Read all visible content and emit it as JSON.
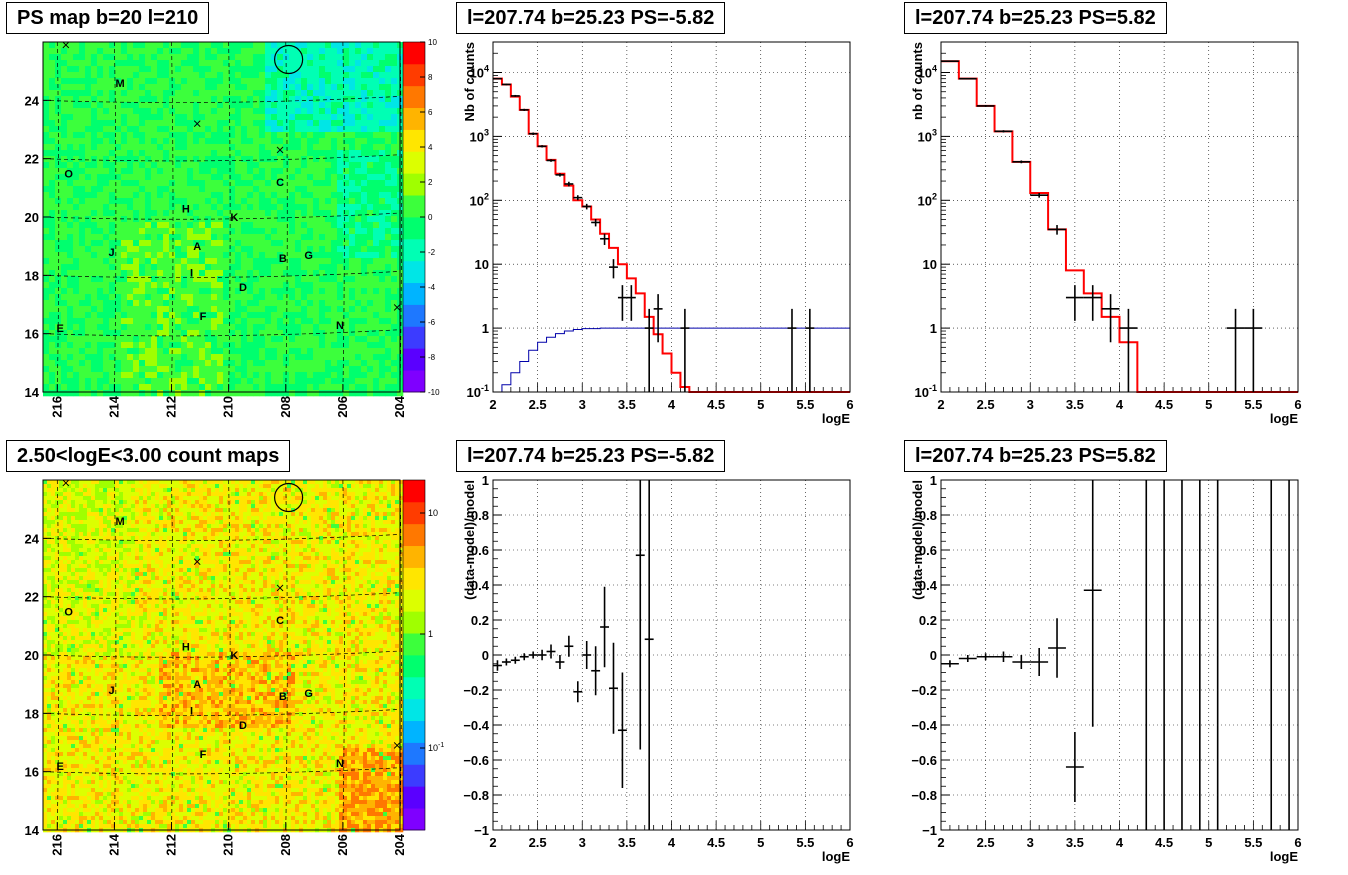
{
  "map_panels": [
    {
      "title": "PS map b=20 l=210",
      "x_ticks": [
        "216",
        "214",
        "212",
        "210",
        "208",
        "206",
        "204"
      ],
      "y_ticks": [
        "14",
        "16",
        "18",
        "20",
        "22",
        "24"
      ],
      "colorbar": {
        "scale": "linear",
        "min": -10,
        "max": 10,
        "ticks": [
          "-10",
          "-8",
          "-6",
          "-4",
          "-2",
          "0",
          "2",
          "4",
          "6",
          "8",
          "10"
        ]
      },
      "palette": [
        "#7f00ff",
        "#5a00ff",
        "#3c3cff",
        "#1e78ff",
        "#00b4ff",
        "#00e6e6",
        "#00ffb4",
        "#00ff6e",
        "#3cff3c",
        "#a0ff00",
        "#dcff00",
        "#ffe600",
        "#ffb400",
        "#ff7800",
        "#ff3c00",
        "#ff0000"
      ],
      "background_color": "#32e85c"
    },
    {
      "title": "2.50<logE<3.00 count maps",
      "x_ticks": [
        "216",
        "214",
        "212",
        "210",
        "208",
        "206",
        "204"
      ],
      "y_ticks": [
        "14",
        "16",
        "18",
        "20",
        "22",
        "24"
      ],
      "colorbar": {
        "scale": "log",
        "tick_labels": [
          "10",
          "1",
          "10-1"
        ]
      },
      "palette": [
        "#7f00ff",
        "#5a00ff",
        "#3c3cff",
        "#1e78ff",
        "#00b4ff",
        "#00e6e6",
        "#00ffb4",
        "#00ff6e",
        "#3cff3c",
        "#a0ff00",
        "#dcff00",
        "#ffe600",
        "#ffb400",
        "#ff7800",
        "#ff3c00",
        "#ff0000"
      ],
      "background_color": "#e8d83a"
    }
  ],
  "map_labels": [
    {
      "name": "M",
      "l": 213.8,
      "b": 24.6
    },
    {
      "name": "O",
      "l": 215.6,
      "b": 21.5
    },
    {
      "name": "C",
      "l": 208.2,
      "b": 21.2
    },
    {
      "name": "H",
      "l": 211.5,
      "b": 20.3
    },
    {
      "name": "K",
      "l": 209.8,
      "b": 20.0
    },
    {
      "name": "J",
      "l": 214.1,
      "b": 18.8
    },
    {
      "name": "A",
      "l": 211.1,
      "b": 19.0
    },
    {
      "name": "B",
      "l": 208.1,
      "b": 18.6
    },
    {
      "name": "G",
      "l": 207.2,
      "b": 18.7
    },
    {
      "name": "I",
      "l": 211.3,
      "b": 18.1
    },
    {
      "name": "D",
      "l": 209.5,
      "b": 17.6
    },
    {
      "name": "F",
      "l": 210.9,
      "b": 16.6
    },
    {
      "name": "N",
      "l": 206.1,
      "b": 16.3
    },
    {
      "name": "E",
      "l": 215.9,
      "b": 16.2
    }
  ],
  "map_crosses": [
    {
      "l": 215.7,
      "b": 25.9
    },
    {
      "l": 211.1,
      "b": 23.2
    },
    {
      "l": 208.2,
      "b": 22.3
    },
    {
      "l": 204.1,
      "b": 16.9
    }
  ],
  "map_circle": {
    "l": 207.9,
    "b": 25.4
  },
  "chart_data": [
    {
      "type": "line",
      "title": "l=207.74 b=25.23 PS=-5.82",
      "xlabel": "logE",
      "ylabel": "Nb of counts",
      "xlim": [
        2,
        6
      ],
      "ylim": [
        0.1,
        30000
      ],
      "yscale": "log",
      "x_ticks": [
        "2",
        "2.5",
        "3",
        "3.5",
        "4",
        "4.5",
        "5",
        "5.5",
        "6"
      ],
      "y_ticks": [
        {
          "v": 0.1,
          "t": "10-1"
        },
        {
          "v": 1,
          "t": "1"
        },
        {
          "v": 10,
          "t": "10"
        },
        {
          "v": 100,
          "t": "10^2"
        },
        {
          "v": 1000,
          "t": "10^3"
        },
        {
          "v": 10000,
          "t": "10^4"
        }
      ],
      "grid": true,
      "model_step": {
        "color": "#ff0000",
        "edges": [
          2,
          2.1,
          2.2,
          2.3,
          2.4,
          2.5,
          2.6,
          2.7,
          2.8,
          2.9,
          3.0,
          3.1,
          3.2,
          3.3,
          3.4,
          3.5,
          3.6,
          3.7,
          3.8,
          3.9,
          4.0,
          4.1,
          4.2,
          6.0
        ],
        "values": [
          8000,
          6500,
          4200,
          2600,
          1100,
          700,
          430,
          260,
          170,
          100,
          80,
          50,
          30,
          18,
          10,
          6,
          3.5,
          1.5,
          0.8,
          0.4,
          0.2,
          0.12,
          0.1
        ]
      },
      "aux_step": {
        "color": "#0000aa",
        "edges": [
          2.0,
          2.1,
          2.2,
          2.3,
          2.4,
          2.5,
          2.6,
          2.7,
          2.8,
          2.9,
          3.0,
          3.2,
          3.4,
          3.6,
          6.0
        ],
        "values": [
          0.08,
          0.13,
          0.2,
          0.3,
          0.45,
          0.6,
          0.72,
          0.82,
          0.9,
          0.95,
          0.98,
          1.0,
          1.0,
          1.0
        ]
      },
      "points": [
        {
          "x": 2.05,
          "y": 8000,
          "lo": 7800,
          "hi": 8200,
          "xe": 0.05
        },
        {
          "x": 2.15,
          "y": 6500,
          "lo": 6300,
          "hi": 6700,
          "xe": 0.05
        },
        {
          "x": 2.25,
          "y": 4300,
          "lo": 4150,
          "hi": 4450,
          "xe": 0.05
        },
        {
          "x": 2.35,
          "y": 2600,
          "lo": 2500,
          "hi": 2700,
          "xe": 0.05
        },
        {
          "x": 2.45,
          "y": 1100,
          "lo": 1050,
          "hi": 1150,
          "xe": 0.05
        },
        {
          "x": 2.55,
          "y": 700,
          "lo": 670,
          "hi": 730,
          "xe": 0.05
        },
        {
          "x": 2.65,
          "y": 420,
          "lo": 400,
          "hi": 440,
          "xe": 0.05
        },
        {
          "x": 2.75,
          "y": 250,
          "lo": 235,
          "hi": 265,
          "xe": 0.05
        },
        {
          "x": 2.85,
          "y": 180,
          "lo": 165,
          "hi": 195,
          "xe": 0.05
        },
        {
          "x": 2.95,
          "y": 110,
          "lo": 100,
          "hi": 120,
          "xe": 0.05
        },
        {
          "x": 3.05,
          "y": 80,
          "lo": 72,
          "hi": 88,
          "xe": 0.05
        },
        {
          "x": 3.15,
          "y": 45,
          "lo": 39,
          "hi": 51,
          "xe": 0.05
        },
        {
          "x": 3.25,
          "y": 25,
          "lo": 20,
          "hi": 30,
          "xe": 0.05
        },
        {
          "x": 3.35,
          "y": 9,
          "lo": 6,
          "hi": 12,
          "xe": 0.05
        },
        {
          "x": 3.45,
          "y": 3,
          "lo": 1.3,
          "hi": 4.7,
          "xe": 0.05
        },
        {
          "x": 3.55,
          "y": 3,
          "lo": 1.3,
          "hi": 4.7,
          "xe": 0.05
        },
        {
          "x": 3.75,
          "y": 1,
          "lo": 0.1,
          "hi": 2,
          "xe": 0.05
        },
        {
          "x": 3.85,
          "y": 2,
          "lo": 0.6,
          "hi": 3.4,
          "xe": 0.05
        },
        {
          "x": 4.15,
          "y": 1,
          "lo": 0.1,
          "hi": 2,
          "xe": 0.05
        },
        {
          "x": 5.35,
          "y": 1,
          "lo": 0.1,
          "hi": 2,
          "xe": 0.05
        },
        {
          "x": 5.55,
          "y": 1,
          "lo": 0.1,
          "hi": 2,
          "xe": 0.05
        }
      ]
    },
    {
      "type": "line",
      "title": "l=207.74 b=25.23 PS=5.82",
      "xlabel": "logE",
      "ylabel": "nb of counts",
      "xlim": [
        2,
        6
      ],
      "ylim": [
        0.1,
        30000
      ],
      "yscale": "log",
      "x_ticks": [
        "2",
        "2.5",
        "3",
        "3.5",
        "4",
        "4.5",
        "5",
        "5.5",
        "6"
      ],
      "y_ticks": [
        {
          "v": 0.1,
          "t": "10-1"
        },
        {
          "v": 1,
          "t": "1"
        },
        {
          "v": 10,
          "t": "10"
        },
        {
          "v": 100,
          "t": "10^2"
        },
        {
          "v": 1000,
          "t": "10^3"
        },
        {
          "v": 10000,
          "t": "10^4"
        }
      ],
      "grid": true,
      "model_step": {
        "color": "#ff0000",
        "edges": [
          2,
          2.2,
          2.4,
          2.6,
          2.8,
          3.0,
          3.2,
          3.4,
          3.6,
          3.8,
          4.0,
          4.2,
          6.0
        ],
        "values": [
          15000,
          8000,
          3000,
          1200,
          400,
          130,
          35,
          8,
          3.5,
          1.5,
          0.6,
          0.1
        ]
      },
      "points": [
        {
          "x": 2.1,
          "y": 15000,
          "lo": 14600,
          "hi": 15400,
          "xe": 0.1
        },
        {
          "x": 2.3,
          "y": 8000,
          "lo": 7800,
          "hi": 8200,
          "xe": 0.1
        },
        {
          "x": 2.5,
          "y": 3000,
          "lo": 2900,
          "hi": 3100,
          "xe": 0.1
        },
        {
          "x": 2.7,
          "y": 1200,
          "lo": 1150,
          "hi": 1250,
          "xe": 0.1
        },
        {
          "x": 2.9,
          "y": 400,
          "lo": 380,
          "hi": 420,
          "xe": 0.1
        },
        {
          "x": 3.1,
          "y": 120,
          "lo": 110,
          "hi": 130,
          "xe": 0.1
        },
        {
          "x": 3.3,
          "y": 35,
          "lo": 29,
          "hi": 41,
          "xe": 0.1
        },
        {
          "x": 3.5,
          "y": 3,
          "lo": 1.3,
          "hi": 4.7,
          "xe": 0.1
        },
        {
          "x": 3.7,
          "y": 3,
          "lo": 1.3,
          "hi": 4.7,
          "xe": 0.1
        },
        {
          "x": 3.9,
          "y": 2,
          "lo": 0.6,
          "hi": 3.4,
          "xe": 0.1
        },
        {
          "x": 4.1,
          "y": 1,
          "lo": 0.1,
          "hi": 2,
          "xe": 0.1
        },
        {
          "x": 5.3,
          "y": 1,
          "lo": 0.1,
          "hi": 2,
          "xe": 0.1
        },
        {
          "x": 5.5,
          "y": 1,
          "lo": 0.1,
          "hi": 2,
          "xe": 0.1
        }
      ]
    },
    {
      "type": "scatter",
      "title": "l=207.74 b=25.23 PS=-5.82",
      "xlabel": "logE",
      "ylabel": "(data-model)/model",
      "xlim": [
        2,
        6
      ],
      "ylim": [
        -1,
        1
      ],
      "yscale": "linear",
      "x_ticks": [
        "2",
        "2.5",
        "3",
        "3.5",
        "4",
        "4.5",
        "5",
        "5.5",
        "6"
      ],
      "y_ticks": [
        {
          "v": -1,
          "t": "−1"
        },
        {
          "v": -0.8,
          "t": "−0.8"
        },
        {
          "v": -0.6,
          "t": "−0.6"
        },
        {
          "v": -0.4,
          "t": "−0.4"
        },
        {
          "v": -0.2,
          "t": "−0.2"
        },
        {
          "v": 0,
          "t": "0"
        },
        {
          "v": 0.2,
          "t": "0.2"
        },
        {
          "v": 0.4,
          "t": "0.4"
        },
        {
          "v": 0.6,
          "t": "0.6"
        },
        {
          "v": 0.8,
          "t": "0.8"
        },
        {
          "v": 1,
          "t": "1"
        }
      ],
      "grid": true,
      "points": [
        {
          "x": 2.05,
          "y": -0.06,
          "lo": -0.09,
          "hi": -0.03,
          "xe": 0.05
        },
        {
          "x": 2.15,
          "y": -0.04,
          "lo": -0.06,
          "hi": -0.02,
          "xe": 0.05
        },
        {
          "x": 2.25,
          "y": -0.03,
          "lo": -0.05,
          "hi": -0.01,
          "xe": 0.05
        },
        {
          "x": 2.35,
          "y": -0.01,
          "lo": -0.03,
          "hi": 0.01,
          "xe": 0.05
        },
        {
          "x": 2.45,
          "y": 0.0,
          "lo": -0.02,
          "hi": 0.02,
          "xe": 0.05
        },
        {
          "x": 2.55,
          "y": 0.0,
          "lo": -0.03,
          "hi": 0.03,
          "xe": 0.05
        },
        {
          "x": 2.65,
          "y": 0.02,
          "lo": -0.02,
          "hi": 0.06,
          "xe": 0.05
        },
        {
          "x": 2.75,
          "y": -0.04,
          "lo": -0.08,
          "hi": 0.0,
          "xe": 0.05
        },
        {
          "x": 2.85,
          "y": 0.05,
          "lo": -0.01,
          "hi": 0.11,
          "xe": 0.05
        },
        {
          "x": 2.95,
          "y": -0.21,
          "lo": -0.27,
          "hi": -0.15,
          "xe": 0.05
        },
        {
          "x": 3.05,
          "y": 0.0,
          "lo": -0.08,
          "hi": 0.08,
          "xe": 0.05
        },
        {
          "x": 3.15,
          "y": -0.09,
          "lo": -0.23,
          "hi": 0.05,
          "xe": 0.05
        },
        {
          "x": 3.25,
          "y": 0.16,
          "lo": -0.07,
          "hi": 0.39,
          "xe": 0.05
        },
        {
          "x": 3.35,
          "y": -0.19,
          "lo": -0.45,
          "hi": 0.07,
          "xe": 0.05
        },
        {
          "x": 3.45,
          "y": -0.43,
          "lo": -0.76,
          "hi": -0.1,
          "xe": 0.05
        },
        {
          "x": 3.65,
          "y": 0.57,
          "lo": -0.54,
          "hi": 1.0,
          "xe": 0.05
        },
        {
          "x": 3.75,
          "y": 0.09,
          "lo": -1.0,
          "hi": 1.0,
          "xe": 0.05
        }
      ]
    },
    {
      "type": "scatter",
      "title": "l=207.74 b=25.23 PS=5.82",
      "xlabel": "logE",
      "ylabel": "(data-model)/model",
      "xlim": [
        2,
        6
      ],
      "ylim": [
        -1,
        1
      ],
      "yscale": "linear",
      "x_ticks": [
        "2",
        "2.5",
        "3",
        "3.5",
        "4",
        "4.5",
        "5",
        "5.5",
        "6"
      ],
      "y_ticks": [
        {
          "v": -1,
          "t": "−1"
        },
        {
          "v": -0.8,
          "t": "−0.8"
        },
        {
          "v": -0.6,
          "t": "−0.6"
        },
        {
          "v": -0.4,
          "t": "−0.4"
        },
        {
          "v": -0.2,
          "t": "−0.2"
        },
        {
          "v": 0,
          "t": "0"
        },
        {
          "v": 0.2,
          "t": "0.2"
        },
        {
          "v": 0.4,
          "t": "0.4"
        },
        {
          "v": 0.6,
          "t": "0.6"
        },
        {
          "v": 0.8,
          "t": "0.8"
        },
        {
          "v": 1,
          "t": "1"
        }
      ],
      "grid": true,
      "points": [
        {
          "x": 2.1,
          "y": -0.05,
          "lo": -0.07,
          "hi": -0.03,
          "xe": 0.1
        },
        {
          "x": 2.3,
          "y": -0.02,
          "lo": -0.04,
          "hi": 0.0,
          "xe": 0.1
        },
        {
          "x": 2.5,
          "y": -0.01,
          "lo": -0.03,
          "hi": 0.01,
          "xe": 0.1
        },
        {
          "x": 2.7,
          "y": -0.01,
          "lo": -0.04,
          "hi": 0.02,
          "xe": 0.1
        },
        {
          "x": 2.9,
          "y": -0.04,
          "lo": -0.08,
          "hi": 0.0,
          "xe": 0.1
        },
        {
          "x": 3.1,
          "y": -0.04,
          "lo": -0.12,
          "hi": 0.04,
          "xe": 0.1
        },
        {
          "x": 3.3,
          "y": 0.04,
          "lo": -0.13,
          "hi": 0.21,
          "xe": 0.1
        },
        {
          "x": 3.5,
          "y": -0.64,
          "lo": -0.84,
          "hi": -0.44,
          "xe": 0.1
        },
        {
          "x": 3.7,
          "y": 0.37,
          "lo": -0.41,
          "hi": 1.0,
          "xe": 0.1
        },
        {
          "x": 4.3,
          "y": 1.0,
          "lo": -1.0,
          "hi": 1.0,
          "xe": 0
        },
        {
          "x": 4.5,
          "y": 1.0,
          "lo": -1.0,
          "hi": 1.0,
          "xe": 0
        },
        {
          "x": 4.7,
          "y": 1.0,
          "lo": -1.0,
          "hi": 1.0,
          "xe": 0
        },
        {
          "x": 4.9,
          "y": 1.0,
          "lo": -1.0,
          "hi": 1.0,
          "xe": 0
        },
        {
          "x": 5.1,
          "y": 1.0,
          "lo": -1.0,
          "hi": 1.0,
          "xe": 0
        },
        {
          "x": 5.7,
          "y": 1.0,
          "lo": -1.0,
          "hi": 1.0,
          "xe": 0
        },
        {
          "x": 5.9,
          "y": 1.0,
          "lo": -1.0,
          "hi": 1.0,
          "xe": 0
        }
      ]
    }
  ]
}
